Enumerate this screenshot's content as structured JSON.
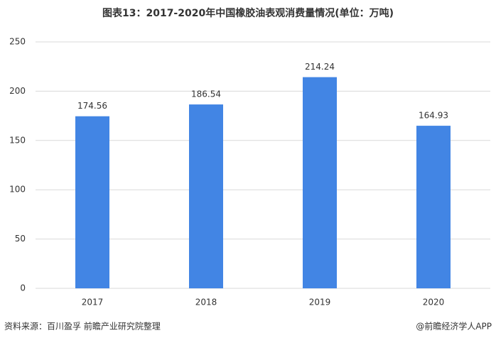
{
  "chart_data": {
    "type": "bar",
    "title": "图表13：2017-2020年中国橡胶油表观消费量情况(单位：万吨)",
    "categories": [
      "2017",
      "2018",
      "2019",
      "2020"
    ],
    "values": [
      174.56,
      186.54,
      214.24,
      164.93
    ],
    "color": "#4285e4",
    "ylim": [
      0,
      250
    ],
    "yticks": [
      0,
      50,
      100,
      150,
      200,
      250
    ],
    "grid": true,
    "source": "资料来源：百川盈孚 前瞻产业研究院整理",
    "credit": "@前瞻经济学人APP"
  }
}
